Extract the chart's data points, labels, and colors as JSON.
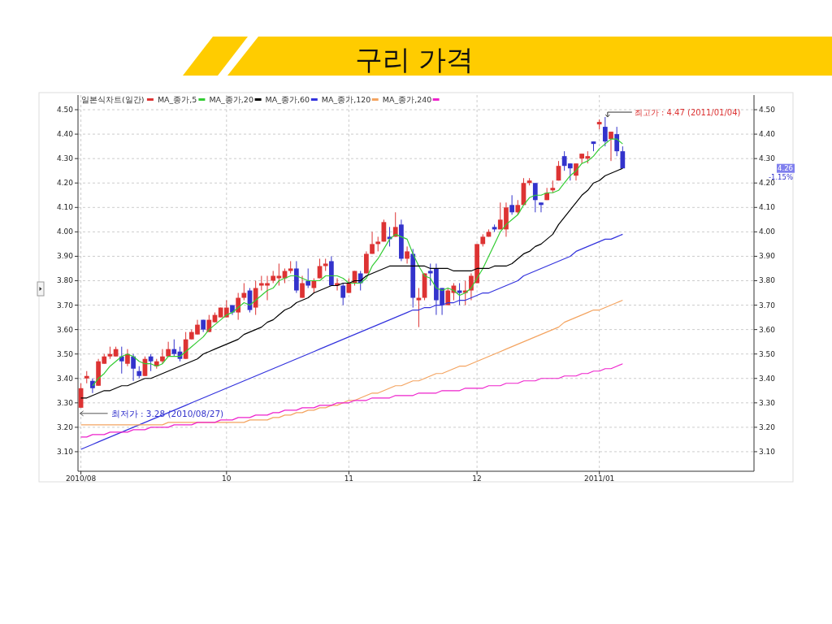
{
  "chart_data": {
    "type": "candlestick",
    "title": "구리 가격",
    "categories": [
      "2010/08",
      null,
      null,
      null,
      null,
      null,
      null,
      null,
      null,
      null,
      null,
      null,
      null,
      null,
      null,
      null,
      null,
      null,
      null,
      null,
      null,
      null,
      null,
      null,
      null,
      "10",
      null,
      null,
      null,
      null,
      null,
      null,
      null,
      null,
      null,
      null,
      null,
      null,
      null,
      null,
      null,
      null,
      null,
      null,
      null,
      null,
      "11",
      null,
      null,
      null,
      null,
      null,
      null,
      null,
      null,
      null,
      null,
      null,
      null,
      null,
      null,
      null,
      null,
      null,
      null,
      null,
      null,
      null,
      "12",
      null,
      null,
      null,
      null,
      null,
      null,
      null,
      null,
      null,
      null,
      null,
      null,
      null,
      null,
      null,
      null,
      null,
      null,
      null,
      null,
      "2011/01",
      null,
      null,
      null,
      null
    ],
    "series": [
      {
        "name": "일본식차트(일간)",
        "color": "#dd3333",
        "ohlc": [
          [
            3.28,
            3.38,
            3.28,
            3.36
          ],
          [
            3.4,
            3.43,
            3.38,
            3.41
          ],
          [
            3.39,
            3.4,
            3.34,
            3.36
          ],
          [
            3.37,
            3.48,
            3.37,
            3.47
          ],
          [
            3.46,
            3.5,
            3.46,
            3.49
          ],
          [
            3.49,
            3.53,
            3.48,
            3.5
          ],
          [
            3.49,
            3.53,
            3.49,
            3.52
          ],
          [
            3.49,
            3.53,
            3.42,
            3.47
          ],
          [
            3.46,
            3.52,
            3.45,
            3.5
          ],
          [
            3.49,
            3.5,
            3.39,
            3.44
          ],
          [
            3.43,
            3.45,
            3.4,
            3.41
          ],
          [
            3.41,
            3.49,
            3.41,
            3.48
          ],
          [
            3.49,
            3.5,
            3.43,
            3.47
          ],
          [
            3.45,
            3.48,
            3.44,
            3.47
          ],
          [
            3.47,
            3.52,
            3.46,
            3.49
          ],
          [
            3.49,
            3.55,
            3.49,
            3.52
          ],
          [
            3.52,
            3.56,
            3.49,
            3.5
          ],
          [
            3.51,
            3.53,
            3.47,
            3.48
          ],
          [
            3.48,
            3.59,
            3.48,
            3.56
          ],
          [
            3.56,
            3.6,
            3.56,
            3.59
          ],
          [
            3.58,
            3.64,
            3.58,
            3.62
          ],
          [
            3.64,
            3.64,
            3.59,
            3.6
          ],
          [
            3.59,
            3.66,
            3.59,
            3.64
          ],
          [
            3.63,
            3.67,
            3.63,
            3.66
          ],
          [
            3.65,
            3.69,
            3.65,
            3.69
          ],
          [
            3.65,
            3.72,
            3.65,
            3.69
          ],
          [
            3.7,
            3.7,
            3.66,
            3.67
          ],
          [
            3.67,
            3.75,
            3.64,
            3.73
          ],
          [
            3.73,
            3.79,
            3.72,
            3.75
          ],
          [
            3.76,
            3.77,
            3.67,
            3.68
          ],
          [
            3.69,
            3.8,
            3.66,
            3.77
          ],
          [
            3.78,
            3.82,
            3.76,
            3.79
          ],
          [
            3.78,
            3.82,
            3.72,
            3.79
          ],
          [
            3.8,
            3.84,
            3.79,
            3.82
          ],
          [
            3.81,
            3.87,
            3.78,
            3.82
          ],
          [
            3.81,
            3.85,
            3.79,
            3.84
          ],
          [
            3.84,
            3.88,
            3.83,
            3.85
          ],
          [
            3.85,
            3.88,
            3.75,
            3.76
          ],
          [
            3.73,
            3.82,
            3.73,
            3.79
          ],
          [
            3.8,
            3.85,
            3.77,
            3.78
          ],
          [
            3.77,
            3.81,
            3.75,
            3.8
          ],
          [
            3.81,
            3.89,
            3.81,
            3.86
          ],
          [
            3.86,
            3.89,
            3.84,
            3.87
          ],
          [
            3.88,
            3.9,
            3.78,
            3.78
          ],
          [
            3.78,
            3.81,
            3.76,
            3.79
          ],
          [
            3.78,
            3.79,
            3.7,
            3.73
          ],
          [
            3.75,
            3.81,
            3.75,
            3.79
          ],
          [
            3.79,
            3.84,
            3.78,
            3.84
          ],
          [
            3.83,
            3.84,
            3.76,
            3.79
          ],
          [
            3.83,
            3.92,
            3.83,
            3.91
          ],
          [
            3.91,
            4.0,
            3.91,
            3.95
          ],
          [
            3.95,
            3.98,
            3.92,
            3.96
          ],
          [
            3.96,
            4.05,
            3.96,
            4.04
          ],
          [
            3.98,
            4.02,
            3.94,
            3.97
          ],
          [
            3.98,
            4.08,
            3.98,
            4.02
          ],
          [
            4.03,
            4.05,
            3.88,
            3.89
          ],
          [
            3.89,
            3.94,
            3.87,
            3.92
          ],
          [
            3.91,
            3.93,
            3.69,
            3.73
          ],
          [
            3.72,
            3.77,
            3.61,
            3.73
          ],
          [
            3.73,
            3.83,
            3.72,
            3.83
          ],
          [
            3.84,
            3.87,
            3.78,
            3.83
          ],
          [
            3.85,
            3.87,
            3.66,
            3.72
          ],
          [
            3.77,
            3.77,
            3.66,
            3.7
          ],
          [
            3.7,
            3.77,
            3.7,
            3.76
          ],
          [
            3.75,
            3.79,
            3.72,
            3.78
          ],
          [
            3.76,
            3.79,
            3.7,
            3.75
          ],
          [
            3.75,
            3.8,
            3.7,
            3.76
          ],
          [
            3.76,
            3.83,
            3.72,
            3.82
          ],
          [
            3.79,
            3.95,
            3.79,
            3.95
          ],
          [
            3.95,
            3.99,
            3.94,
            3.98
          ],
          [
            3.98,
            4.01,
            3.98,
            4.0
          ],
          [
            4.02,
            4.03,
            4.0,
            4.01
          ],
          [
            4.01,
            4.12,
            4.01,
            4.05
          ],
          [
            4.01,
            4.12,
            3.98,
            4.1
          ],
          [
            4.11,
            4.15,
            4.07,
            4.08
          ],
          [
            4.08,
            4.13,
            4.07,
            4.11
          ],
          [
            4.11,
            4.22,
            4.11,
            4.2
          ],
          [
            4.2,
            4.22,
            4.19,
            4.21
          ],
          [
            4.2,
            4.2,
            4.08,
            4.13
          ],
          [
            4.12,
            4.12,
            4.08,
            4.11
          ],
          [
            4.13,
            4.18,
            4.13,
            4.16
          ],
          [
            4.17,
            4.21,
            4.16,
            4.18
          ],
          [
            4.21,
            4.29,
            4.21,
            4.27
          ],
          [
            4.31,
            4.33,
            4.25,
            4.27
          ],
          [
            4.28,
            4.28,
            4.21,
            4.26
          ],
          [
            4.23,
            4.28,
            4.21,
            4.28
          ],
          [
            4.3,
            4.32,
            4.28,
            4.32
          ],
          [
            4.3,
            4.33,
            4.28,
            4.31
          ],
          [
            4.37,
            4.37,
            4.33,
            4.36
          ],
          [
            4.44,
            4.46,
            4.42,
            4.45
          ],
          [
            4.43,
            4.47,
            4.35,
            4.37
          ],
          [
            4.38,
            4.41,
            4.29,
            4.41
          ],
          [
            4.4,
            4.43,
            4.31,
            4.33
          ],
          [
            4.33,
            4.35,
            4.26,
            4.26
          ]
        ],
        "colors": [
          "#dd3333",
          "#dd3333",
          "#3333cc",
          "#dd3333",
          "#dd3333",
          "#dd3333",
          "#dd3333",
          "#3333cc",
          "#dd3333",
          "#3333cc",
          "#3333cc",
          "#dd3333",
          "#3333cc",
          "#dd3333",
          "#dd3333",
          "#dd3333",
          "#3333cc",
          "#3333cc",
          "#dd3333",
          "#dd3333",
          "#dd3333",
          "#3333cc",
          "#dd3333",
          "#dd3333",
          "#dd3333",
          "#dd3333",
          "#3333cc",
          "#dd3333",
          "#dd3333",
          "#3333cc",
          "#dd3333",
          "#dd3333",
          "#dd3333",
          "#dd3333",
          "#dd3333",
          "#dd3333",
          "#dd3333",
          "#3333cc",
          "#dd3333",
          "#3333cc",
          "#dd3333",
          "#dd3333",
          "#dd3333",
          "#3333cc",
          "#dd3333",
          "#3333cc",
          "#dd3333",
          "#dd3333",
          "#3333cc",
          "#dd3333",
          "#dd3333",
          "#dd3333",
          "#dd3333",
          "#3333cc",
          "#dd3333",
          "#3333cc",
          "#dd3333",
          "#3333cc",
          "#dd3333",
          "#dd3333",
          "#3333cc",
          "#3333cc",
          "#3333cc",
          "#dd3333",
          "#dd3333",
          "#3333cc",
          "#dd3333",
          "#dd3333",
          "#dd3333",
          "#dd3333",
          "#dd3333",
          "#3333cc",
          "#dd3333",
          "#dd3333",
          "#3333cc",
          "#dd3333",
          "#dd3333",
          "#dd3333",
          "#3333cc",
          "#3333cc",
          "#dd3333",
          "#dd3333",
          "#dd3333",
          "#3333cc",
          "#3333cc",
          "#dd3333",
          "#dd3333",
          "#dd3333",
          "#3333cc",
          "#dd3333",
          "#3333cc",
          "#dd3333",
          "#3333cc",
          "#3333cc"
        ]
      },
      {
        "name": "MA_종가,5",
        "type": "line",
        "color": "#33cc33",
        "values": [
          null,
          null,
          3.37,
          3.4,
          3.42,
          3.45,
          3.47,
          3.49,
          3.5,
          3.49,
          3.47,
          3.46,
          3.46,
          3.45,
          3.46,
          3.49,
          3.49,
          3.49,
          3.51,
          3.53,
          3.55,
          3.57,
          3.6,
          3.62,
          3.64,
          3.66,
          3.67,
          3.69,
          3.71,
          3.7,
          3.72,
          3.74,
          3.76,
          3.77,
          3.8,
          3.81,
          3.82,
          3.82,
          3.81,
          3.8,
          3.8,
          3.8,
          3.82,
          3.82,
          3.82,
          3.81,
          3.79,
          3.79,
          3.79,
          3.81,
          3.86,
          3.89,
          3.93,
          3.97,
          3.99,
          3.98,
          3.97,
          3.91,
          3.86,
          3.82,
          3.81,
          3.77,
          3.76,
          3.77,
          3.76,
          3.74,
          3.75,
          3.77,
          3.81,
          3.85,
          3.9,
          3.95,
          4.0,
          4.03,
          4.05,
          4.07,
          4.11,
          4.14,
          4.15,
          4.15,
          4.16,
          4.16,
          4.17,
          4.2,
          4.23,
          4.25,
          4.28,
          4.29,
          4.31,
          4.34,
          4.36,
          4.38,
          4.38,
          4.36
        ]
      },
      {
        "name": "MA_종가,20",
        "type": "line",
        "color": "#000000",
        "values": [
          3.32,
          3.32,
          3.33,
          3.34,
          3.35,
          3.35,
          3.36,
          3.37,
          3.37,
          3.38,
          3.39,
          3.4,
          3.4,
          3.41,
          3.42,
          3.43,
          3.44,
          3.45,
          3.46,
          3.47,
          3.48,
          3.5,
          3.51,
          3.52,
          3.53,
          3.54,
          3.55,
          3.56,
          3.58,
          3.59,
          3.6,
          3.61,
          3.63,
          3.64,
          3.66,
          3.68,
          3.69,
          3.71,
          3.72,
          3.73,
          3.75,
          3.76,
          3.77,
          3.78,
          3.78,
          3.79,
          3.79,
          3.8,
          3.8,
          3.82,
          3.83,
          3.84,
          3.85,
          3.86,
          3.86,
          3.86,
          3.86,
          3.86,
          3.86,
          3.86,
          3.85,
          3.85,
          3.85,
          3.85,
          3.84,
          3.84,
          3.84,
          3.84,
          3.85,
          3.85,
          3.85,
          3.86,
          3.86,
          3.86,
          3.87,
          3.89,
          3.91,
          3.92,
          3.94,
          3.95,
          3.97,
          3.99,
          4.03,
          4.06,
          4.09,
          4.12,
          4.15,
          4.17,
          4.2,
          4.21,
          4.23,
          4.24,
          4.25,
          4.26
        ]
      },
      {
        "name": "MA_종가,60",
        "type": "line",
        "color": "#3333dd",
        "values": [
          3.11,
          3.12,
          3.13,
          3.14,
          3.15,
          3.16,
          3.17,
          3.18,
          3.19,
          3.2,
          3.21,
          3.22,
          3.23,
          3.24,
          3.25,
          3.26,
          3.27,
          3.28,
          3.29,
          3.3,
          3.31,
          3.32,
          3.33,
          3.34,
          3.35,
          3.36,
          3.37,
          3.38,
          3.39,
          3.4,
          3.41,
          3.42,
          3.43,
          3.44,
          3.45,
          3.46,
          3.47,
          3.48,
          3.49,
          3.5,
          3.51,
          3.52,
          3.53,
          3.54,
          3.55,
          3.56,
          3.57,
          3.58,
          3.59,
          3.6,
          3.61,
          3.62,
          3.63,
          3.64,
          3.65,
          3.66,
          3.67,
          3.68,
          3.68,
          3.69,
          3.69,
          3.7,
          3.7,
          3.71,
          3.71,
          3.72,
          3.72,
          3.73,
          3.74,
          3.75,
          3.75,
          3.76,
          3.77,
          3.78,
          3.79,
          3.8,
          3.82,
          3.83,
          3.84,
          3.85,
          3.86,
          3.87,
          3.88,
          3.89,
          3.9,
          3.92,
          3.93,
          3.94,
          3.95,
          3.96,
          3.97,
          3.97,
          3.98,
          3.99
        ]
      },
      {
        "name": "MA_종가,120",
        "type": "line",
        "color": "#f4a460",
        "values": [
          3.21,
          3.21,
          3.21,
          3.21,
          3.21,
          3.21,
          3.21,
          3.21,
          3.21,
          3.21,
          3.21,
          3.21,
          3.21,
          3.21,
          3.21,
          3.22,
          3.22,
          3.22,
          3.22,
          3.22,
          3.22,
          3.22,
          3.22,
          3.22,
          3.22,
          3.22,
          3.22,
          3.22,
          3.22,
          3.23,
          3.23,
          3.23,
          3.23,
          3.24,
          3.24,
          3.25,
          3.25,
          3.26,
          3.26,
          3.27,
          3.27,
          3.28,
          3.28,
          3.29,
          3.29,
          3.3,
          3.31,
          3.31,
          3.32,
          3.33,
          3.34,
          3.34,
          3.35,
          3.36,
          3.37,
          3.37,
          3.38,
          3.39,
          3.39,
          3.4,
          3.41,
          3.42,
          3.42,
          3.43,
          3.44,
          3.45,
          3.45,
          3.46,
          3.47,
          3.48,
          3.49,
          3.5,
          3.51,
          3.52,
          3.53,
          3.54,
          3.55,
          3.56,
          3.57,
          3.58,
          3.59,
          3.6,
          3.61,
          3.63,
          3.64,
          3.65,
          3.66,
          3.67,
          3.68,
          3.68,
          3.69,
          3.7,
          3.71,
          3.72
        ]
      },
      {
        "name": "MA_종가,240",
        "type": "line",
        "color": "#ee22cc",
        "values": [
          3.16,
          3.16,
          3.17,
          3.17,
          3.17,
          3.18,
          3.18,
          3.18,
          3.18,
          3.19,
          3.19,
          3.19,
          3.2,
          3.2,
          3.2,
          3.2,
          3.21,
          3.21,
          3.21,
          3.21,
          3.22,
          3.22,
          3.22,
          3.22,
          3.23,
          3.23,
          3.23,
          3.24,
          3.24,
          3.24,
          3.25,
          3.25,
          3.25,
          3.26,
          3.26,
          3.27,
          3.27,
          3.27,
          3.28,
          3.28,
          3.28,
          3.29,
          3.29,
          3.29,
          3.3,
          3.3,
          3.3,
          3.31,
          3.31,
          3.31,
          3.32,
          3.32,
          3.32,
          3.32,
          3.33,
          3.33,
          3.33,
          3.33,
          3.34,
          3.34,
          3.34,
          3.34,
          3.35,
          3.35,
          3.35,
          3.35,
          3.36,
          3.36,
          3.36,
          3.36,
          3.37,
          3.37,
          3.37,
          3.38,
          3.38,
          3.38,
          3.39,
          3.39,
          3.39,
          3.4,
          3.4,
          3.4,
          3.4,
          3.41,
          3.41,
          3.41,
          3.42,
          3.42,
          3.43,
          3.43,
          3.44,
          3.44,
          3.45,
          3.46
        ]
      }
    ],
    "ylim": [
      3.02,
      4.56
    ],
    "yticks": [
      {
        "value": 3.1,
        "label": "3.10"
      },
      {
        "value": 3.2,
        "label": "3.20"
      },
      {
        "value": 3.3,
        "label": "3.30"
      },
      {
        "value": 3.4,
        "label": "3.40"
      },
      {
        "value": 3.5,
        "label": "3.50"
      },
      {
        "value": 3.6,
        "label": "3.60"
      },
      {
        "value": 3.7,
        "label": "3.70"
      },
      {
        "value": 3.8,
        "label": "3.80"
      },
      {
        "value": 3.9,
        "label": "3.90"
      },
      {
        "value": 4.0,
        "label": "4.00"
      },
      {
        "value": 4.1,
        "label": "4.10"
      },
      {
        "value": 4.2,
        "label": "4.20"
      },
      {
        "value": 4.3,
        "label": "4.30"
      },
      {
        "value": 4.4,
        "label": "4.40"
      },
      {
        "value": 4.5,
        "label": "4.50"
      }
    ],
    "grid": true,
    "legend": "top left",
    "annotations": [
      "최고가 : 4.47 (2011/01/04)",
      "최저가 : 3.28 (2010/08/27)",
      "4.26",
      "-1.15%"
    ]
  }
}
